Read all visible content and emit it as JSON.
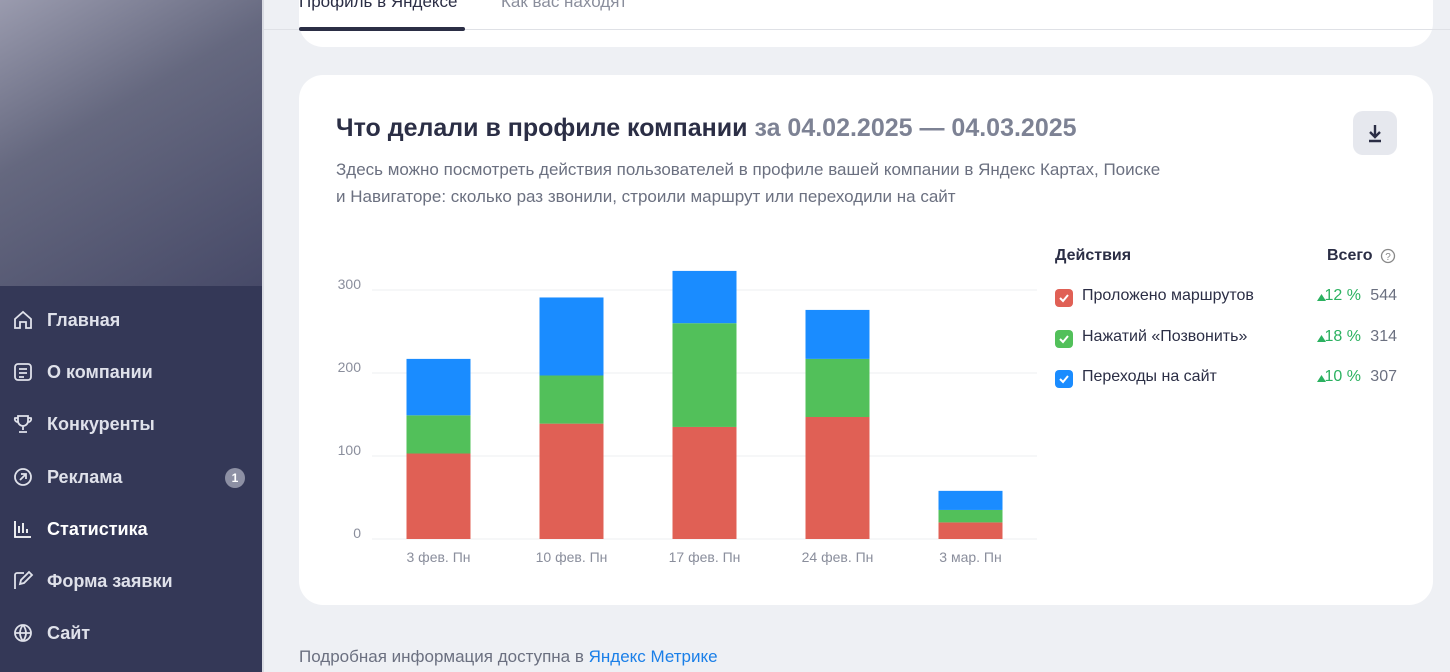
{
  "nav": [
    {
      "label": "Главная"
    },
    {
      "label": "О компании"
    },
    {
      "label": "Конкуренты"
    },
    {
      "label": "Реклама",
      "badge": "1"
    },
    {
      "label": "Статистика",
      "active": true
    },
    {
      "label": "Форма заявки"
    },
    {
      "label": "Сайт"
    }
  ],
  "tabs": [
    "Профиль в Яндексе",
    "Как вас находят"
  ],
  "card": {
    "title": "Что делали в профиле компании",
    "period": "за 04.02.2025 — 04.03.2025",
    "description": [
      "Здесь можно посмотреть действия пользователей в профиле вашей компании в Яндекс Картах, Поиске",
      "и Навигаторе: сколько раз звонили, строили маршрут или переходили на сайт"
    ]
  },
  "actions_table": {
    "headers": [
      "Действия",
      "Всего"
    ],
    "rows": [
      {
        "change": "12 %",
        "total": "544"
      },
      {
        "change": "18 %",
        "total": "314"
      },
      {
        "change": "10 %",
        "total": "307"
      }
    ]
  },
  "chart_data": {
    "type": "bar",
    "stacked": true,
    "categories": [
      "3 фев. Пн",
      "10 фев. Пн",
      "17 фев. Пн",
      "24 фев. Пн",
      "3 мар. Пн"
    ],
    "series": [
      {
        "name": "Проложено маршрутов",
        "color": "#e06055",
        "values": [
          103,
          139,
          135,
          147,
          20
        ]
      },
      {
        "name": "Нажатий «Позвонить»",
        "color": "#52c05a",
        "values": [
          46,
          58,
          125,
          70,
          15
        ]
      },
      {
        "name": "Переходы на сайт",
        "color": "#1a8cff",
        "values": [
          68,
          94,
          63,
          59,
          23
        ]
      }
    ],
    "ylim": [
      0,
      340
    ],
    "yticks": [
      0,
      100,
      200,
      300
    ],
    "grid": true
  },
  "footer": {
    "text": "Подробная информация доступна в ",
    "link": "Яндекс Метрике"
  }
}
